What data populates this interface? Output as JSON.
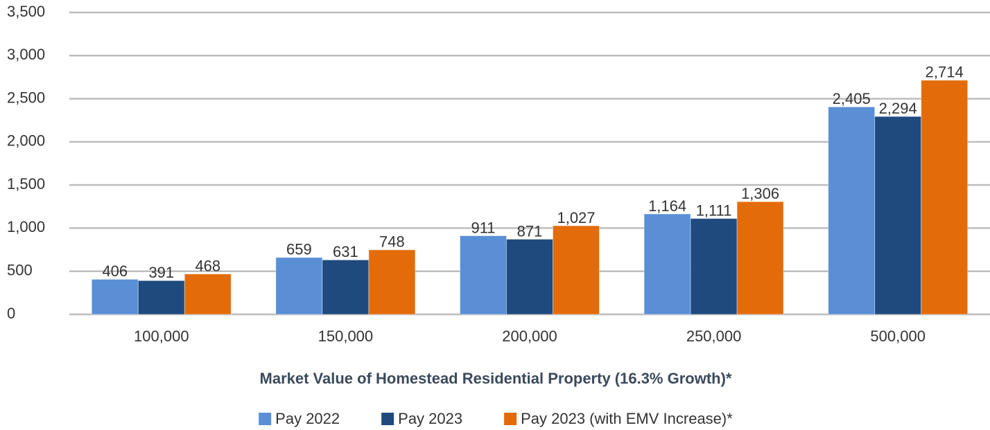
{
  "chart_data": {
    "type": "bar",
    "xlabel": "Market Value of Homestead Residential Property (16.3% Growth)*",
    "categories": [
      "100,000",
      "150,000",
      "200,000",
      "250,000",
      "500,000"
    ],
    "series": [
      {
        "name": "Pay 2022",
        "color": "#5a8fd6",
        "values": [
          406,
          659,
          911,
          1164,
          2405
        ],
        "value_labels": [
          "406",
          "659",
          "911",
          "1,164",
          "2,405"
        ]
      },
      {
        "name": "Pay 2023",
        "color": "#1f4a7e",
        "values": [
          391,
          631,
          871,
          1111,
          2294
        ],
        "value_labels": [
          "391",
          "631",
          "871",
          "1,111",
          "2,294"
        ]
      },
      {
        "name": "Pay 2023 (with EMV Increase)*",
        "color": "#e36c0a",
        "values": [
          468,
          748,
          1027,
          1306,
          2714
        ],
        "value_labels": [
          "468",
          "748",
          "1,027",
          "1,306",
          "2,714"
        ]
      }
    ],
    "ylim": [
      0,
      3500
    ],
    "yticks": [
      0,
      500,
      {
        "value": 1000,
        "label": "1,000"
      },
      {
        "value": 1500,
        "label": "1,500"
      },
      {
        "value": 2000,
        "label": "2,000"
      },
      {
        "value": 2500,
        "label": "2,500"
      },
      {
        "value": 3000,
        "label": "3,000"
      },
      {
        "value": 3500,
        "label": "3,500"
      }
    ],
    "grid": true,
    "legend": "bottom"
  }
}
